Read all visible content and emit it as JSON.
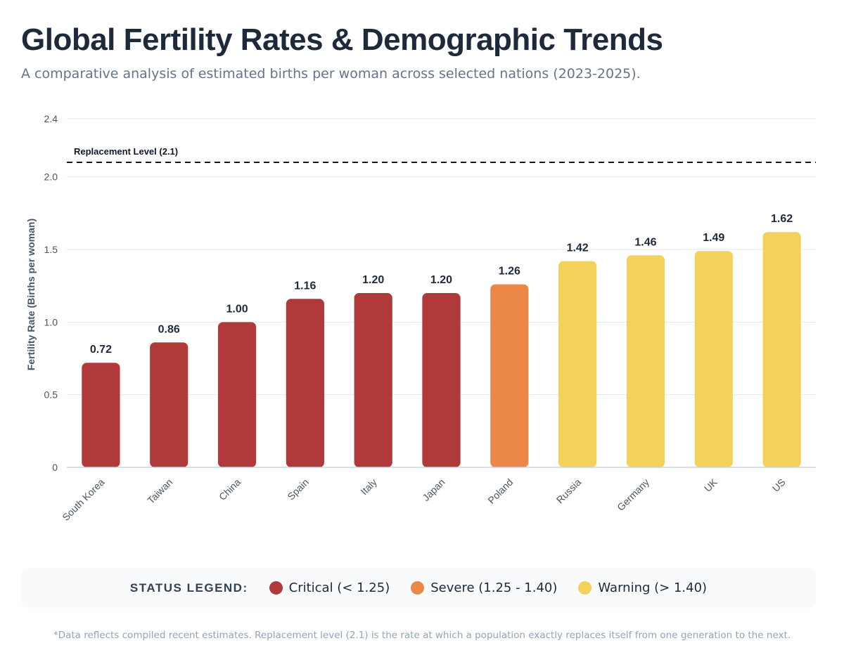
{
  "header": {
    "title": "Global Fertility Rates & Demographic Trends",
    "subtitle": "A comparative analysis of estimated births per woman across selected nations (2023-2025)."
  },
  "chart_data": {
    "type": "bar",
    "title": "Global Fertility Rates & Demographic Trends",
    "subtitle": "A comparative analysis of estimated births per woman across selected nations (2023-2025).",
    "xlabel": "",
    "ylabel": "Fertility Rate (Births per woman)",
    "ylim": [
      0,
      2.4
    ],
    "yticks": [
      0,
      0.5,
      1.0,
      1.5,
      2.0,
      2.4
    ],
    "ytick_labels": [
      "0",
      "0.5",
      "1.0",
      "1.5",
      "2.0",
      "2.4"
    ],
    "grid": true,
    "categories": [
      "South Korea",
      "Taiwan",
      "China",
      "Spain",
      "Italy",
      "Japan",
      "Poland",
      "Russia",
      "Germany",
      "UK",
      "US"
    ],
    "values": [
      0.72,
      0.86,
      1.0,
      1.16,
      1.2,
      1.2,
      1.26,
      1.42,
      1.46,
      1.49,
      1.62
    ],
    "value_labels": [
      "0.72",
      "0.86",
      "1.00",
      "1.16",
      "1.20",
      "1.20",
      "1.26",
      "1.42",
      "1.46",
      "1.49",
      "1.62"
    ],
    "statuses": [
      "critical",
      "critical",
      "critical",
      "critical",
      "critical",
      "critical",
      "severe",
      "warning",
      "warning",
      "warning",
      "warning"
    ],
    "reference_line": {
      "value": 2.1,
      "label": "Replacement Level (2.1)"
    },
    "colors": {
      "critical": "#b03a39",
      "severe": "#eb8848",
      "warning": "#f2d25a"
    }
  },
  "legend": {
    "title": "STATUS LEGEND:",
    "items": [
      {
        "label": "Critical (< 1.25)",
        "color": "#b03a39"
      },
      {
        "label": "Severe (1.25 - 1.40)",
        "color": "#eb8848"
      },
      {
        "label": "Warning (> 1.40)",
        "color": "#f2d25a"
      }
    ]
  },
  "footnote": "*Data reflects compiled recent estimates. Replacement level (2.1) is the rate at which a population exactly replaces itself from one generation to the next."
}
